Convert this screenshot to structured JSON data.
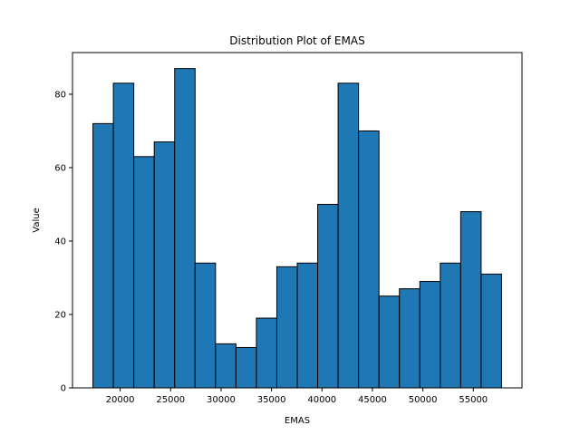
{
  "chart_data": {
    "type": "bar",
    "title": "Distribution Plot of EMAS",
    "xlabel": "EMAS",
    "ylabel": "Value",
    "bin_edges": [
      17300,
      19325,
      21350,
      23375,
      25400,
      27425,
      29450,
      31475,
      33500,
      35525,
      37550,
      39575,
      41600,
      43625,
      45650,
      47675,
      49700,
      51725,
      53750,
      55775,
      57800
    ],
    "values": [
      72,
      83,
      63,
      67,
      87,
      34,
      12,
      11,
      19,
      33,
      34,
      50,
      83,
      70,
      25,
      27,
      29,
      34,
      48,
      31
    ],
    "xlim": [
      15275,
      59825
    ],
    "ylim": [
      0,
      91.35
    ],
    "xticks": [
      20000,
      25000,
      30000,
      35000,
      40000,
      45000,
      50000,
      55000
    ],
    "yticks": [
      0,
      20,
      40,
      60,
      80
    ],
    "bar_color": "#1f77b4",
    "edge_color": "#000000",
    "grid": false
  }
}
